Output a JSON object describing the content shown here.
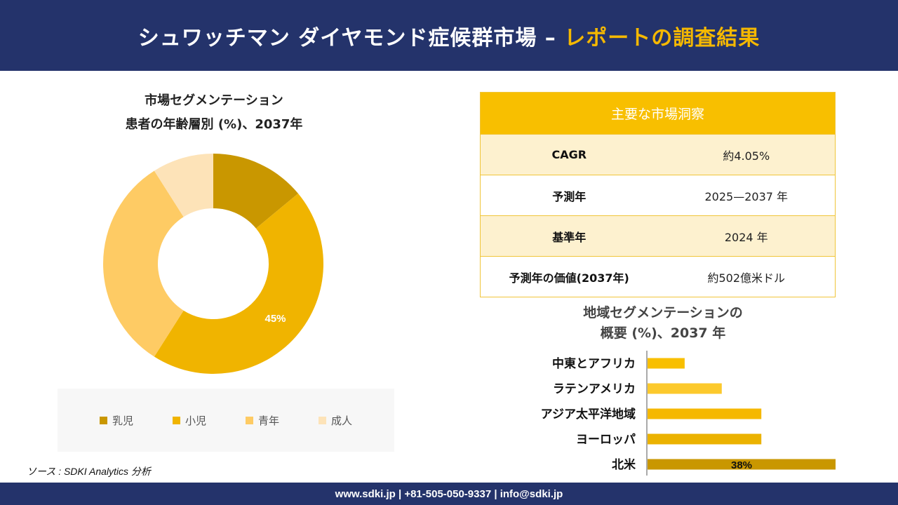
{
  "header": {
    "title_main": "シュワッチマン ダイヤモンド症候群市場 – ",
    "title_highlight": "レポートの調査結果"
  },
  "donut": {
    "title_line1": "市場セグメンテーション",
    "title_line2": "患者の年齢層別 (%)、2037年"
  },
  "insights": {
    "heading": "主要な市場洞察",
    "rows": [
      {
        "key": "CAGR",
        "value": "約4.05%"
      },
      {
        "key": "予測年",
        "value": "2025—2037 年"
      },
      {
        "key": "基準年",
        "value": "2024 年"
      },
      {
        "key": "予測年の価値(2037年)",
        "value": "約502億米ドル"
      }
    ]
  },
  "bar": {
    "title_line1": "地域セグメンテーションの",
    "title_line2": "概要 (%)、2037 年"
  },
  "source": "ソース : SDKI Analytics 分析",
  "footer": "www.sdki.jp | +81-505-050-9337 | info@sdki.jp",
  "colors": {
    "header_bg": "#24336b",
    "accent": "#f5b800",
    "infant": "#c99700",
    "child": "#f0b400",
    "youth": "#fecb64",
    "adult": "#fde3b8"
  },
  "chart_data": [
    {
      "type": "pie",
      "categories": [
        "乳児",
        "小児",
        "青年",
        "成人"
      ],
      "values": [
        14,
        45,
        32,
        9
      ],
      "data_labels": [
        "",
        "45%",
        "",
        ""
      ],
      "legend_position": "bottom"
    },
    {
      "type": "bar",
      "orientation": "horizontal",
      "categories": [
        "中東とアフリカ",
        "ラテンアメリカ",
        "アジア太平洋地域",
        "ヨーロッパ",
        "北米"
      ],
      "values": [
        7.5,
        15,
        23,
        23,
        38
      ],
      "data_labels": [
        "",
        "",
        "",
        "",
        "38%"
      ],
      "xlim": [
        0,
        38
      ]
    }
  ]
}
